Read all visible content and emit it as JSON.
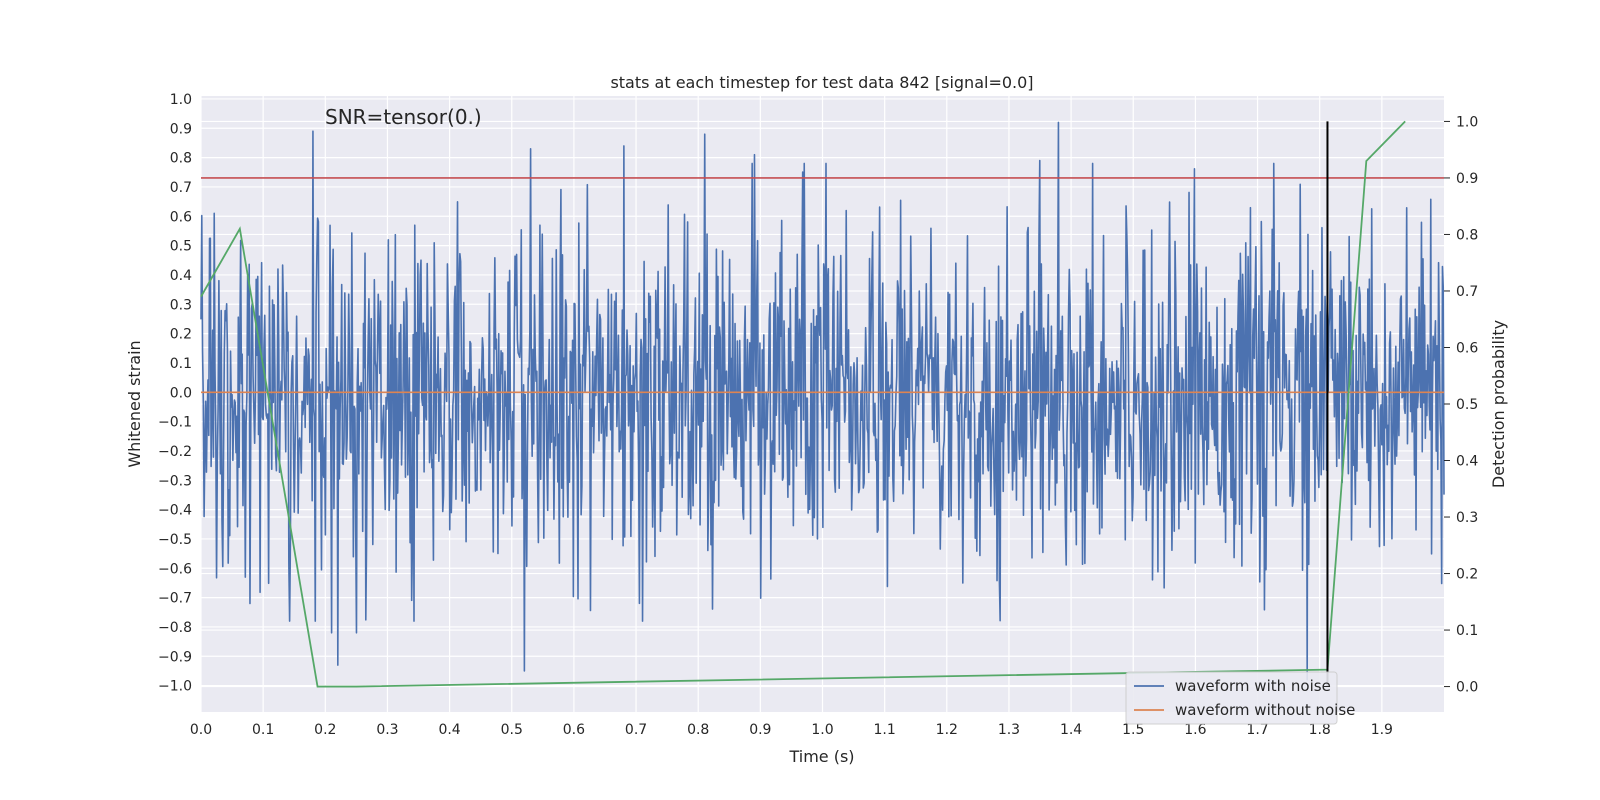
{
  "chart_data": {
    "type": "line",
    "title": "stats at each timestep for test data 842 [signal=0.0]",
    "annotation": "SNR=tensor(0.)",
    "xlabel": "Time (s)",
    "ylabel": "Whitened strain",
    "y2label": "Detection probability",
    "xlim": [
      0.0,
      2.0
    ],
    "ylim": [
      -1.09,
      1.01
    ],
    "y2lim": [
      -0.045,
      1.045
    ],
    "x_ticks": [
      0.0,
      0.1,
      0.2,
      0.3,
      0.4,
      0.5,
      0.6,
      0.7,
      0.8,
      0.9,
      1.0,
      1.1,
      1.2,
      1.3,
      1.4,
      1.5,
      1.6,
      1.7,
      1.8,
      1.9
    ],
    "x_tick_labels": [
      "0.0",
      "0.1",
      "0.2",
      "0.3",
      "0.4",
      "0.5",
      "0.6",
      "0.7",
      "0.8",
      "0.9",
      "1.0",
      "1.1",
      "1.2",
      "1.3",
      "1.4",
      "1.5",
      "1.6",
      "1.7",
      "1.8",
      "1.9"
    ],
    "y_ticks": [
      1.0,
      0.9,
      0.8,
      0.7,
      0.6,
      0.5,
      0.4,
      0.3,
      0.2,
      0.1,
      0.0,
      -0.1,
      -0.2,
      -0.3,
      -0.4,
      -0.5,
      -0.6,
      -0.7,
      -0.8,
      -0.9,
      -1.0
    ],
    "y_tick_labels": [
      "1.0",
      "0.9",
      "0.8",
      "0.7",
      "0.6",
      "0.5",
      "0.4",
      "0.3",
      "0.2",
      "0.1",
      "0.0",
      "−0.1",
      "−0.2",
      "−0.3",
      "−0.4",
      "−0.5",
      "−0.6",
      "−0.7",
      "−0.8",
      "−0.9",
      "−1.0"
    ],
    "y2_ticks": [
      1.0,
      0.9,
      0.8,
      0.7,
      0.6,
      0.5,
      0.4,
      0.3,
      0.2,
      0.1,
      0.0
    ],
    "y2_tick_labels": [
      "1.0",
      "0.9",
      "0.8",
      "0.7",
      "0.6",
      "0.5",
      "0.4",
      "0.3",
      "0.2",
      "0.1",
      "0.0"
    ],
    "legend_position": "lower-right",
    "series": [
      {
        "name": "waveform with noise",
        "color": "#4c72b0",
        "axis": "left",
        "kind": "noise",
        "x_range": [
          0.0,
          2.0
        ],
        "num_points": 1600,
        "amplitude_std": 0.28,
        "peaks": [
          [
            0.18,
            0.89
          ],
          [
            0.21,
            -0.82
          ],
          [
            0.22,
            -0.93
          ],
          [
            0.25,
            -0.82
          ],
          [
            0.52,
            -0.95
          ],
          [
            0.53,
            0.83
          ],
          [
            0.68,
            0.84
          ],
          [
            0.81,
            0.88
          ],
          [
            0.89,
            0.81
          ],
          [
            1.38,
            0.92
          ],
          [
            1.35,
            0.79
          ],
          [
            1.78,
            -0.98
          ]
        ]
      },
      {
        "name": "waveform without noise",
        "color": "#dd8452",
        "axis": "left",
        "x": [
          0.0,
          2.0
        ],
        "y": [
          0.0,
          0.0
        ]
      },
      {
        "name": "detection probability",
        "color": "#55a868",
        "axis": "right",
        "x": [
          0.0,
          0.0625,
          0.1875,
          0.25,
          1.8125,
          1.875,
          1.9375
        ],
        "y": [
          0.69,
          0.81,
          0.0,
          0.0,
          0.03,
          0.93,
          1.0
        ]
      }
    ],
    "hlines": [
      {
        "name": "threshold",
        "axis": "right",
        "y": 0.9,
        "color": "#c44e52"
      }
    ],
    "vlines": [
      {
        "name": "marker",
        "x": 1.8125,
        "y2_range": [
          0.0,
          1.0
        ],
        "color": "#000000"
      }
    ]
  }
}
